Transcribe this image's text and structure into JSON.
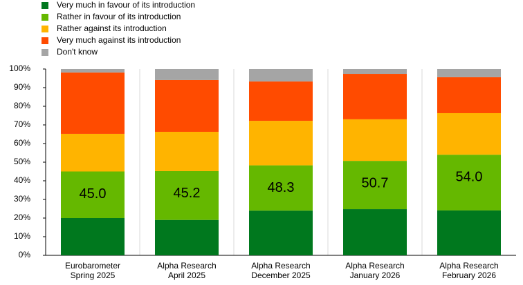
{
  "chart_data": {
    "type": "stacked_bar",
    "categories": [
      [
        "Eurobarometer",
        "Spring 2025"
      ],
      [
        "Alpha Research",
        "April 2025"
      ],
      [
        "Alpha Research",
        "December 2025"
      ],
      [
        "Alpha Research",
        "January 2026"
      ],
      [
        "Alpha Research",
        "February 2026"
      ]
    ],
    "series": [
      {
        "name": "Very much in favour of its introduction",
        "color": "#00781e",
        "values": [
          20,
          19,
          24,
          24.8,
          24.1
        ]
      },
      {
        "name": "Rather in favour of its introduction",
        "color": "#65b800",
        "values": [
          25,
          26.2,
          24.3,
          25.9,
          29.9
        ]
      },
      {
        "name": "Rather against its introduction",
        "color": "#ffb400",
        "values": [
          20.2,
          21.1,
          23.9,
          22.3,
          22.3
        ]
      },
      {
        "name": "Very much against its introduction",
        "color": "#ff4b00",
        "values": [
          32.9,
          27.8,
          21.1,
          24.4,
          19.3
        ]
      },
      {
        "name": "Don't know",
        "color": "#a5a5a5",
        "values": [
          1.9,
          5.9,
          6.7,
          2.6,
          4.4
        ]
      }
    ],
    "in_favour_totals": {
      "values": [
        45,
        45.2,
        48.3,
        50.7,
        54
      ],
      "value_labels": [
        "45.0",
        "45.2",
        "48.3",
        "50.7",
        "54.0"
      ]
    },
    "ylim": [
      0,
      100
    ],
    "yticks": [
      {
        "value": 0,
        "label": "0%"
      },
      {
        "value": 10,
        "label": "10%"
      },
      {
        "value": 20,
        "label": "20%"
      },
      {
        "value": 30,
        "label": "30%"
      },
      {
        "value": 40,
        "label": "40%"
      },
      {
        "value": 50,
        "label": "50%"
      },
      {
        "value": 60,
        "label": "60%"
      },
      {
        "value": 70,
        "label": "70%"
      },
      {
        "value": 80,
        "label": "80%"
      },
      {
        "value": 90,
        "label": "90%"
      },
      {
        "value": 100,
        "label": "100%"
      }
    ]
  }
}
